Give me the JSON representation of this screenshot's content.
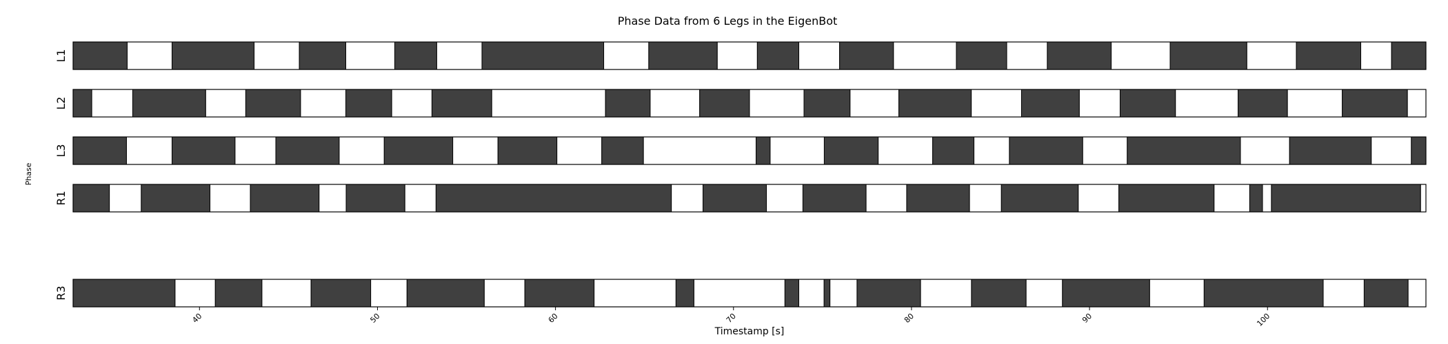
{
  "chart_data": {
    "type": "bar",
    "title": "Phase Data from 6 Legs in the EigenBot",
    "xlabel": "Timestamp [s]",
    "ylabel": "Phase",
    "xlim": [
      32.9,
      108.9
    ],
    "xticks": [
      40,
      50,
      60,
      70,
      80,
      90,
      100
    ],
    "colors": {
      "stance": "#404040",
      "swing": "#ffffff",
      "edge": "#000000"
    },
    "rows": [
      {
        "label": "L1",
        "boundaries": [
          32.9,
          35.94,
          38.46,
          43.07,
          45.61,
          48.22,
          50.97,
          53.33,
          55.87,
          62.71,
          65.24,
          69.09,
          71.34,
          73.67,
          75.96,
          78.99,
          82.52,
          85.35,
          87.63,
          91.22,
          94.53,
          98.84,
          101.62,
          105.24,
          106.97,
          108.9
        ]
      },
      {
        "label": "L2",
        "boundaries": [
          32.9,
          33.95,
          36.25,
          40.35,
          42.6,
          45.68,
          48.22,
          50.8,
          53.06,
          56.42,
          62.81,
          65.32,
          68.1,
          70.9,
          73.96,
          76.55,
          79.29,
          83.36,
          86.18,
          89.43,
          91.72,
          94.83,
          98.35,
          101.12,
          104.2,
          107.86,
          108.9
        ]
      },
      {
        "label": "L3",
        "boundaries": [
          32.9,
          35.9,
          38.46,
          42.0,
          44.29,
          47.85,
          50.38,
          54.23,
          56.77,
          60.08,
          62.6,
          64.94,
          71.27,
          72.06,
          75.1,
          78.13,
          81.19,
          83.51,
          85.5,
          89.62,
          92.12,
          98.48,
          101.24,
          105.83,
          108.08,
          108.9
        ]
      },
      {
        "label": "R1",
        "boundaries": [
          32.9,
          34.94,
          36.73,
          40.59,
          42.86,
          46.72,
          48.24,
          51.54,
          53.29,
          66.51,
          68.29,
          71.85,
          73.9,
          77.45,
          79.73,
          83.26,
          85.05,
          89.37,
          91.65,
          97.0,
          99.0,
          99.72,
          100.22,
          108.6,
          108.9
        ]
      },
      {
        "label": "R3",
        "boundaries": [
          32.9,
          38.63,
          40.89,
          43.51,
          46.27,
          49.62,
          51.66,
          56.0,
          58.28,
          62.17,
          66.77,
          67.78,
          72.89,
          73.67,
          75.09,
          75.42,
          76.94,
          80.51,
          83.37,
          86.44,
          88.48,
          93.38,
          96.44,
          103.13,
          105.43,
          107.9,
          108.9
        ]
      }
    ]
  }
}
